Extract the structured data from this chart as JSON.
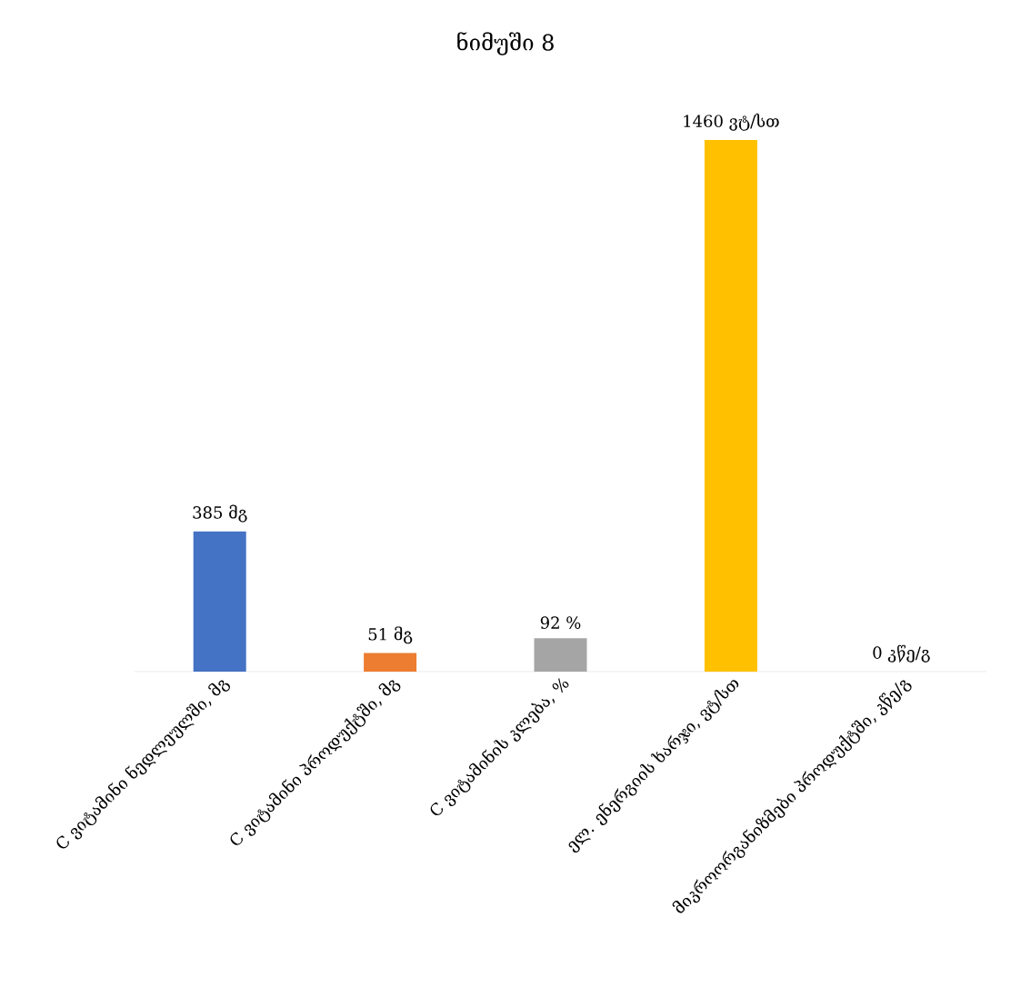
{
  "chart_data": {
    "type": "bar",
    "title": "ნიმუში 8",
    "categories": [
      "C ვიტამინი ნედლეულში, მგ",
      "C ვიტამინი პროდუქტში, მგ",
      "C ვიტამინის კლება, %",
      "ელ. ენერგიის ხარჯი, ვტ/სთ",
      "მიკროორგანიზმები პროდუქტში, კწე/გ"
    ],
    "values": [
      385,
      51,
      92,
      1460,
      0
    ],
    "value_labels": [
      "385 მგ",
      "51 მგ",
      "92 %",
      "1460 ვტ/სთ",
      "0 კწე/გ"
    ],
    "colors": [
      "#4472c4",
      "#ed7d31",
      "#a5a5a5",
      "#ffc000",
      "#5b9bd5"
    ]
  }
}
